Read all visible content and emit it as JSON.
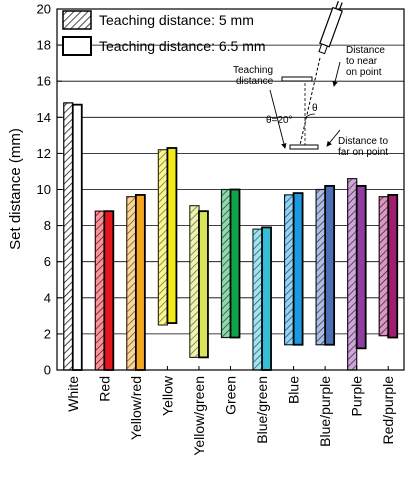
{
  "chart_data": {
    "type": "bar",
    "ylabel": "Set distance (mm)",
    "ylim": [
      0,
      20
    ],
    "yticks": [
      0,
      2,
      4,
      6,
      8,
      10,
      12,
      14,
      16,
      18,
      20
    ],
    "grid": "horizontal",
    "legend_position": "top-left",
    "categories": [
      "White",
      "Red",
      "Yellow/red",
      "Yellow",
      "Yellow/green",
      "Green",
      "Blue/green",
      "Blue",
      "Blue/purple",
      "Purple",
      "Red/purple"
    ],
    "category_colors": [
      "#ffffff",
      "#e8141c",
      "#f5a623",
      "#f4ea1a",
      "#d9e45a",
      "#0fa34a",
      "#35bfd6",
      "#1a9ae0",
      "#4a6fb5",
      "#8e3fa0",
      "#a11e6e"
    ],
    "series": [
      {
        "name": "Teaching distance: 5 mm",
        "pattern": "hatched",
        "ranges": [
          [
            0,
            14.8
          ],
          [
            0,
            8.8
          ],
          [
            0,
            9.6
          ],
          [
            2.5,
            12.2
          ],
          [
            0.7,
            9.1
          ],
          [
            1.8,
            10.0
          ],
          [
            0,
            7.8
          ],
          [
            1.4,
            9.7
          ],
          [
            1.4,
            10.0
          ],
          [
            0,
            10.6
          ],
          [
            1.9,
            9.6
          ]
        ]
      },
      {
        "name": "Teaching distance: 6.5 mm",
        "pattern": "solid",
        "ranges": [
          [
            0,
            14.7
          ],
          [
            0,
            8.8
          ],
          [
            0,
            9.7
          ],
          [
            2.6,
            12.3
          ],
          [
            0.7,
            8.8
          ],
          [
            1.8,
            10.0
          ],
          [
            0,
            7.9
          ],
          [
            1.4,
            9.8
          ],
          [
            1.4,
            10.2
          ],
          [
            1.2,
            10.2
          ],
          [
            1.8,
            9.7
          ]
        ]
      }
    ]
  },
  "inset": {
    "teaching_distance": "Teaching\ndistance",
    "near_point": "Distance\nto near\non point",
    "far_point": "Distance to\nfar on point",
    "angle_label": "θ=20°",
    "theta": "θ"
  }
}
